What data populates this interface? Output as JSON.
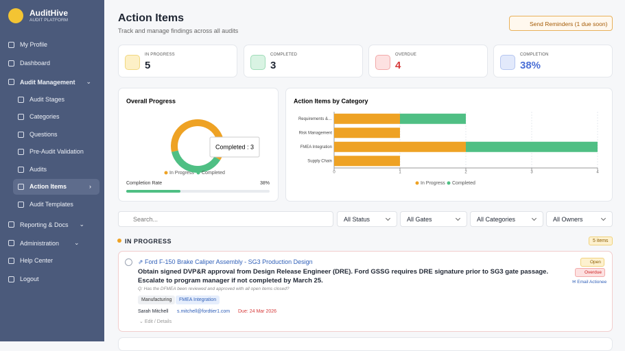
{
  "sidebar": {
    "brand": "AuditHive",
    "brand_subtitle": "AUDIT PLATFORM",
    "nav": [
      {
        "label": "My Profile"
      },
      {
        "label": "Dashboard"
      },
      {
        "label": "Audit Management",
        "children": [
          "Audit Stages",
          "Categories",
          "Questions",
          "Pre-Audit Validation",
          "Audits",
          "Action Items",
          "Audit Templates"
        ]
      },
      {
        "label": "Reporting & Docs"
      },
      {
        "label": "Administration"
      },
      {
        "label": "Help Center"
      },
      {
        "label": "Logout"
      }
    ]
  },
  "header": {
    "title": "Action Items",
    "subtitle": "Track and manage findings across all audits",
    "button": "Send Reminders (1 due soon)"
  },
  "stats": [
    {
      "label": "IN PROGRESS",
      "value": 5
    },
    {
      "label": "COMPLETED",
      "value": 3
    },
    {
      "label": "OVERDUE",
      "value": 4
    },
    {
      "label": "COMPLETION",
      "value": "38%"
    }
  ],
  "chart_data": [
    {
      "type": "pie",
      "title": "Overall Progress",
      "categories": [
        "In Progress",
        "Completed"
      ],
      "values": [
        5,
        3
      ],
      "colors": [
        "#eea224",
        "#4fbf84"
      ],
      "tooltip": "Completed : 3"
    },
    {
      "type": "bar",
      "title": "Action Items by Category",
      "categories": [
        "Requirements &…",
        "Risk Management",
        "FMEA Integration",
        "Supply Chain"
      ],
      "series": [
        {
          "name": "In Progress",
          "color": "#eea224",
          "values": [
            1,
            1,
            2,
            1
          ]
        },
        {
          "name": "Completed",
          "color": "#4fbf84",
          "values": [
            1,
            0,
            2,
            0
          ]
        }
      ],
      "xlim": [
        0,
        4
      ],
      "xticks": [
        0,
        1,
        2,
        3,
        4
      ],
      "stacked": true,
      "grid": true
    }
  ],
  "progress": {
    "label": "Completion Rate",
    "value": 38,
    "value_label": "38%"
  },
  "filters": {
    "search_placeholder": "Search...",
    "selects": [
      "All Status",
      "All Gates",
      "All Categories",
      "All Owners"
    ]
  },
  "section": {
    "title": "IN PROGRESS",
    "count": "5 items"
  },
  "items": [
    {
      "title": "Ford F-150 Brake Caliper Assembly - SG3 Production Design",
      "description": "Obtain signed DVP&R approval from Design Release Engineer (DRE). Ford GSSG requires DRE signature prior to SG3 gate passage. Escalate to program manager if not completed by March 25.",
      "question": "Q: Has the DFMEA been reviewed and approved with all open items closed?",
      "tags": [
        "Manufacturing",
        "FMEA Integration"
      ],
      "owner": "Sarah Mitchell",
      "email": "s.mitchell@fordtier1.com",
      "due": "Due: 24 Mar 2026",
      "edit": "Edit / Details",
      "badges": [
        "Open",
        "Overdue"
      ],
      "email_action": "Email Actionee"
    }
  ]
}
